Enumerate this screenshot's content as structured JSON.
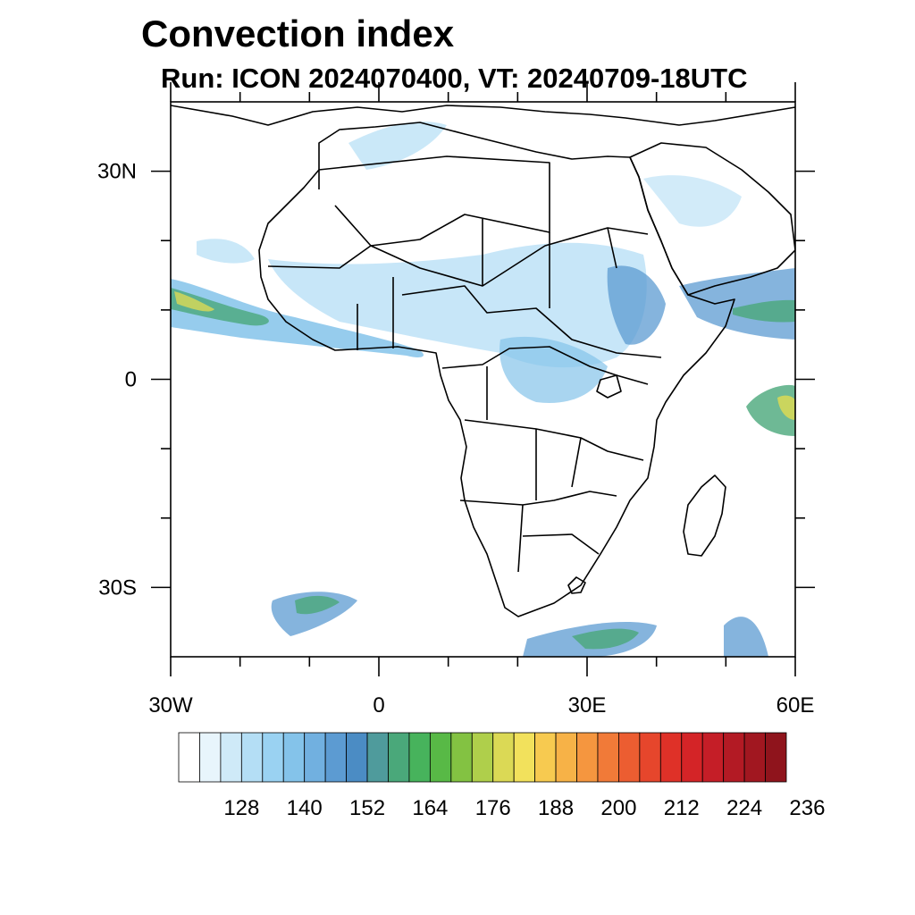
{
  "title": "Convection index",
  "subtitle": "Run: ICON 2024070400,  VT: 20240709-18UTC",
  "map": {
    "lon_range": [
      -30,
      60
    ],
    "lat_range": [
      -40,
      40
    ],
    "lon_ticks": [
      {
        "value": -30,
        "label": "30W"
      },
      {
        "value": 0,
        "label": "0"
      },
      {
        "value": 30,
        "label": "30E"
      },
      {
        "value": 60,
        "label": "60E"
      }
    ],
    "lat_ticks": [
      {
        "value": 30,
        "label": "30N"
      },
      {
        "value": 0,
        "label": "0"
      },
      {
        "value": -30,
        "label": "30S"
      }
    ],
    "minor_lon_ticks": [
      -20,
      -10,
      10,
      20,
      40,
      50
    ],
    "minor_lat_ticks": [
      20,
      10,
      -10,
      -20
    ]
  },
  "colorbar": {
    "labels": [
      "128",
      "140",
      "152",
      "164",
      "176",
      "188",
      "200",
      "212",
      "224",
      "236"
    ],
    "colors": [
      "#ffffff",
      "#e8f5fc",
      "#cfeaf8",
      "#b4def5",
      "#9ad2f2",
      "#84c3ea",
      "#71b0e0",
      "#5c9bd2",
      "#4b8cc4",
      "#4f9b9c",
      "#4aa87a",
      "#47b35c",
      "#58b946",
      "#83c242",
      "#afcf4b",
      "#dbd955",
      "#f2e15c",
      "#f7ca50",
      "#f7b247",
      "#f5963f",
      "#f17a38",
      "#ec5d31",
      "#e6462c",
      "#df3128",
      "#d42427",
      "#c51e27",
      "#b31a24",
      "#a11720",
      "#8f141c"
    ]
  }
}
